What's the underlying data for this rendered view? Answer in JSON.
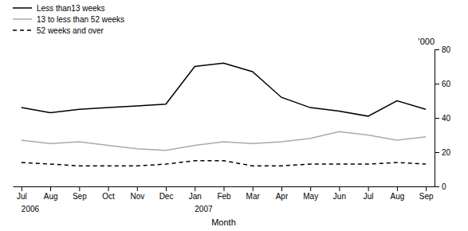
{
  "chart_data": {
    "type": "line",
    "categories": [
      "Jul",
      "Aug",
      "Sep",
      "Oct",
      "Nov",
      "Dec",
      "Jan",
      "Feb",
      "Mar",
      "Apr",
      "May",
      "Jun",
      "Jul",
      "Aug",
      "Sep"
    ],
    "series": [
      {
        "name": "Less than13 weeks",
        "color": "#000000",
        "line_style": "solid",
        "values": [
          46,
          43,
          45,
          46,
          47,
          48,
          70,
          72,
          67,
          52,
          46,
          44,
          41,
          50,
          45
        ]
      },
      {
        "name": "13 to less than 52 weeks",
        "color": "#aaaaaa",
        "line_style": "solid",
        "values": [
          27,
          25,
          26,
          24,
          22,
          21,
          24,
          26,
          25,
          26,
          28,
          32,
          30,
          27,
          29
        ]
      },
      {
        "name": "52 weeks and over",
        "color": "#000000",
        "line_style": "dashed",
        "values": [
          14,
          13,
          12,
          12,
          12,
          13,
          15,
          15,
          12,
          12,
          13,
          13,
          13,
          14,
          13
        ]
      }
    ],
    "xlabel": "Month",
    "ylabel": "'000",
    "ylim": [
      0,
      80
    ],
    "yticks": [
      0,
      20,
      40,
      60,
      80
    ],
    "annotations": [
      {
        "text": "2006",
        "x": 0
      },
      {
        "text": "2007",
        "x": 6
      }
    ],
    "grid": false,
    "legend": "upper left"
  }
}
